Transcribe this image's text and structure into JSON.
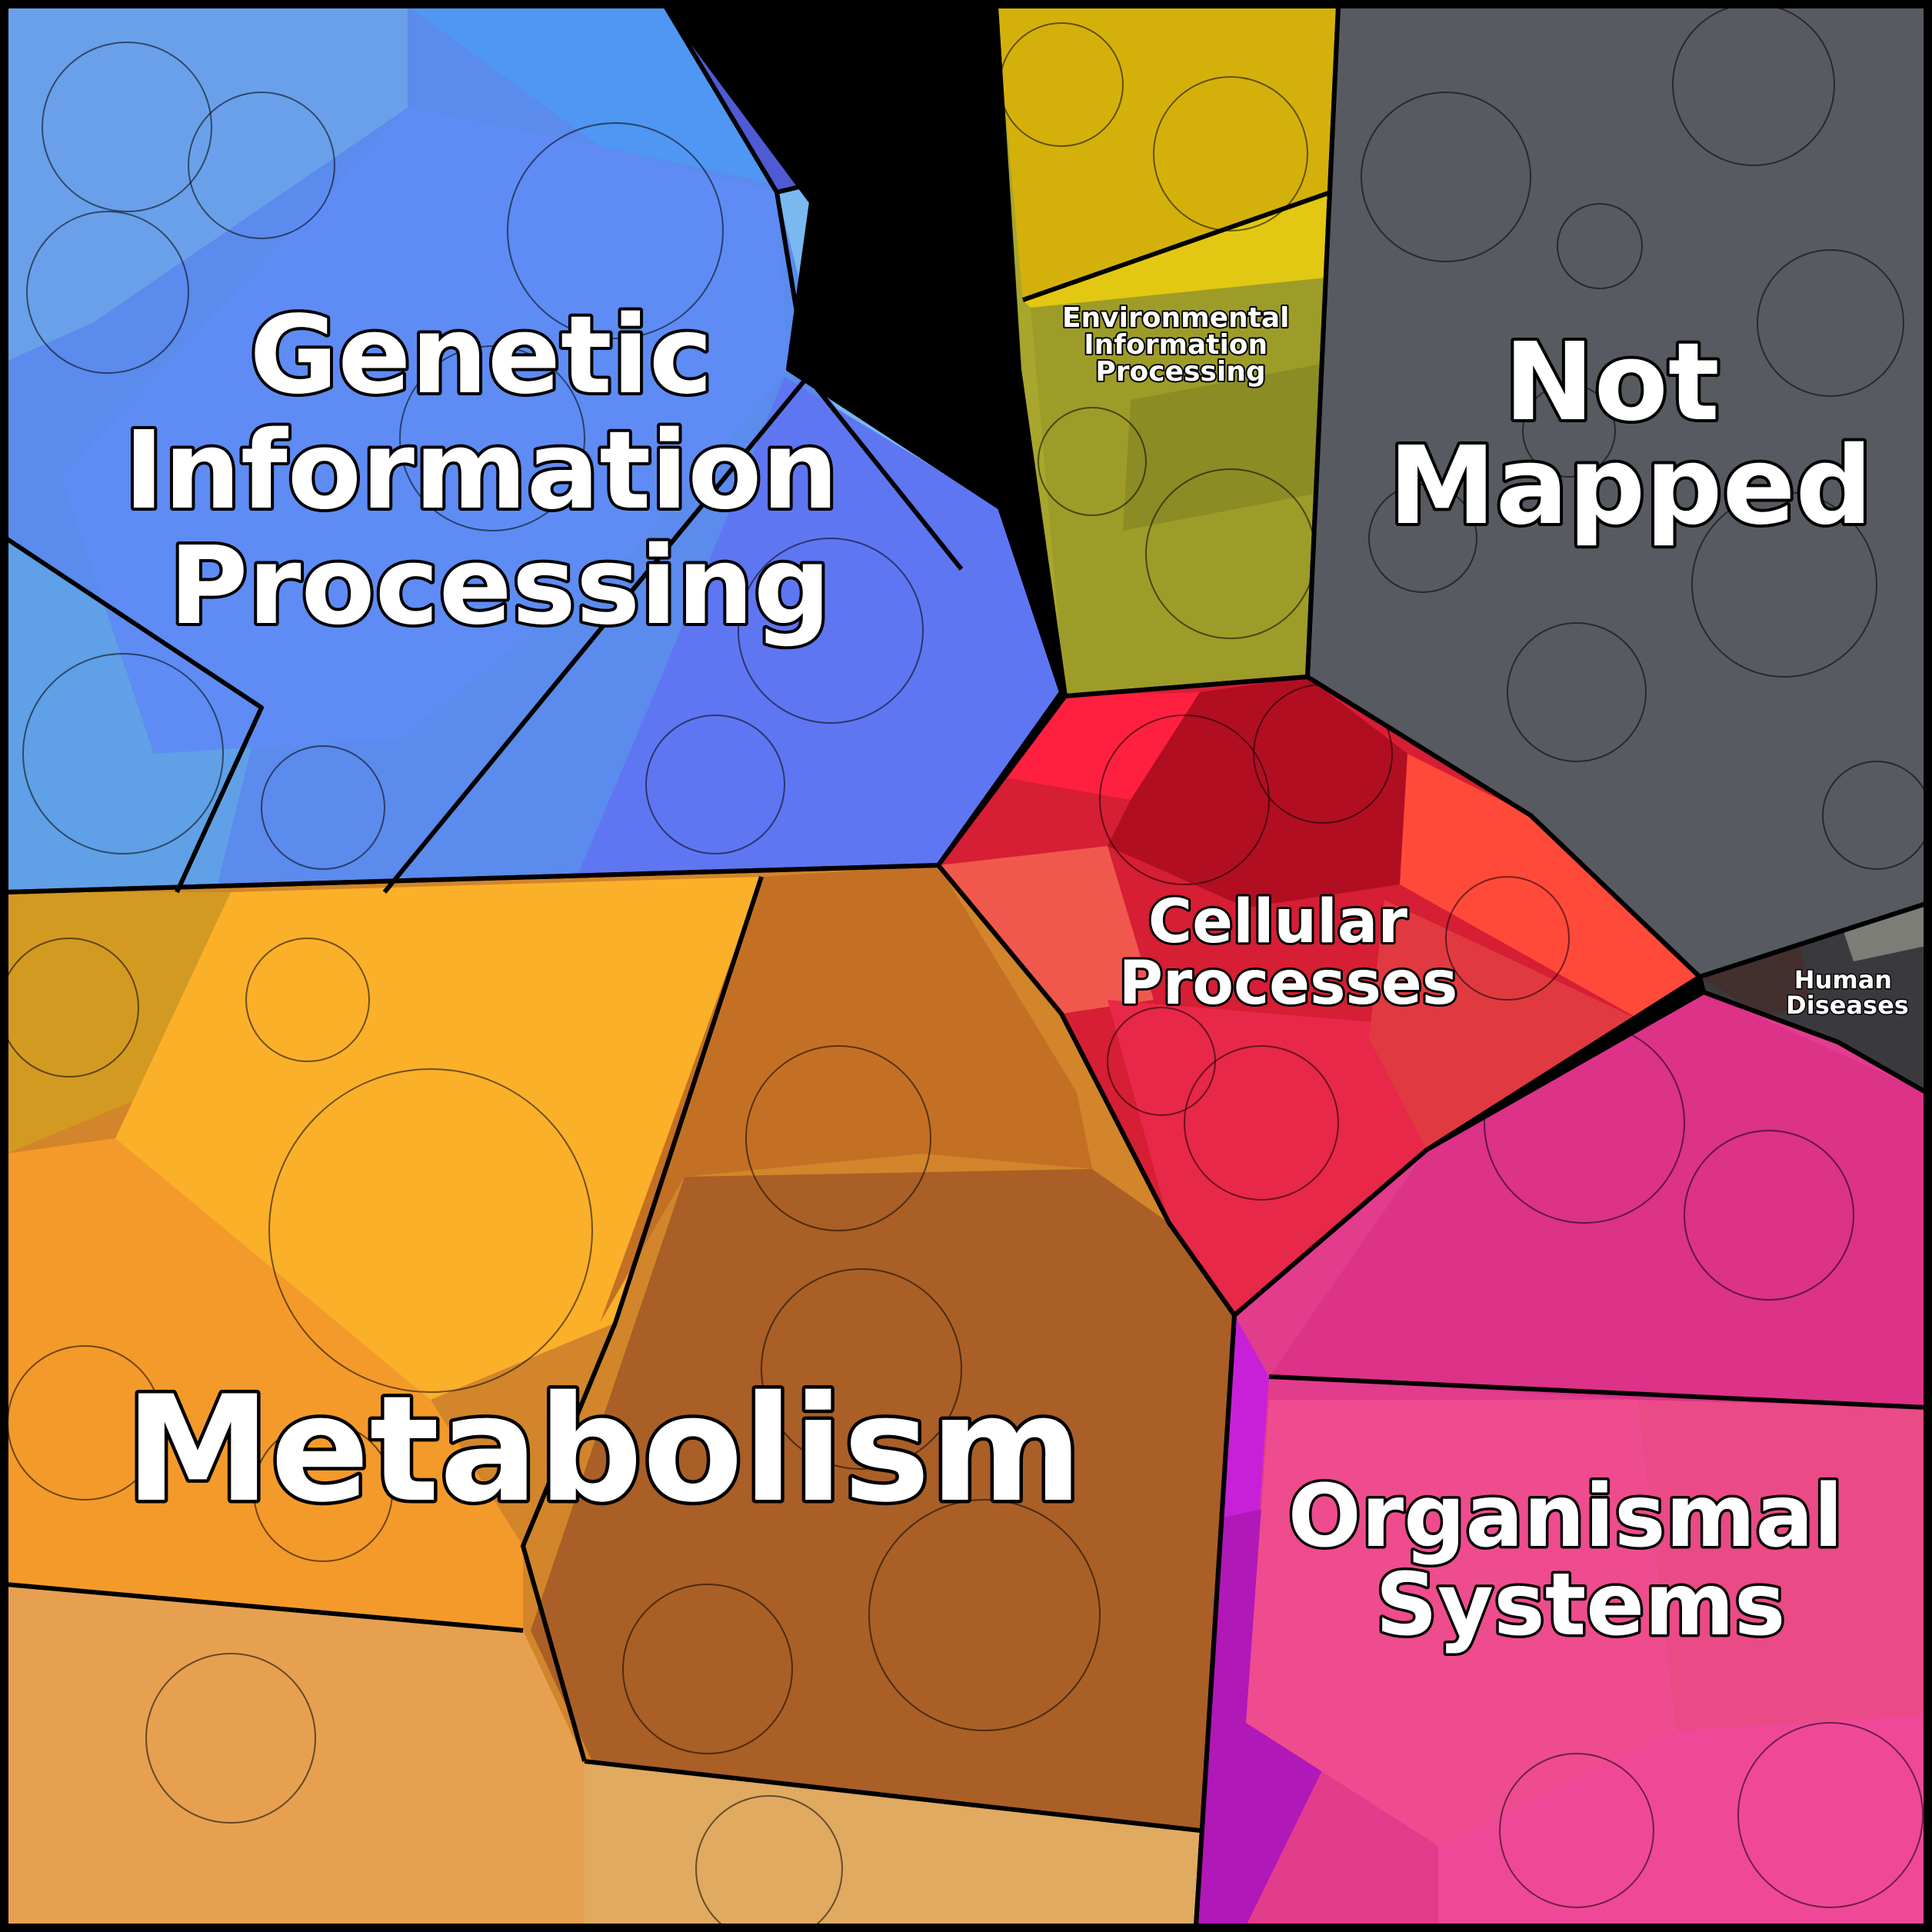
{
  "diagram": {
    "type": "voronoi-treemap",
    "regions": [
      {
        "key": "genetic",
        "lines": [
          "Genetic",
          "Information",
          "Processing"
        ],
        "color": "#5b8bec"
      },
      {
        "key": "environmental",
        "lines": [
          "Environmental",
          "Information",
          "Processing"
        ],
        "color": "#a8a62c"
      },
      {
        "key": "not_mapped",
        "lines": [
          "Not",
          "Mapped"
        ],
        "color": "#55595f"
      },
      {
        "key": "cellular",
        "lines": [
          "Cellular",
          "Processes"
        ],
        "color": "#d61e34"
      },
      {
        "key": "human_diseases",
        "lines": [
          "Human",
          "Diseases"
        ],
        "color": "#3a3a3e"
      },
      {
        "key": "organismal",
        "lines": [
          "Organismal",
          "Systems"
        ],
        "color": "#e23c8c"
      },
      {
        "key": "metabolism",
        "lines": [
          "Metabolism"
        ],
        "color": "#d2852a"
      }
    ]
  }
}
